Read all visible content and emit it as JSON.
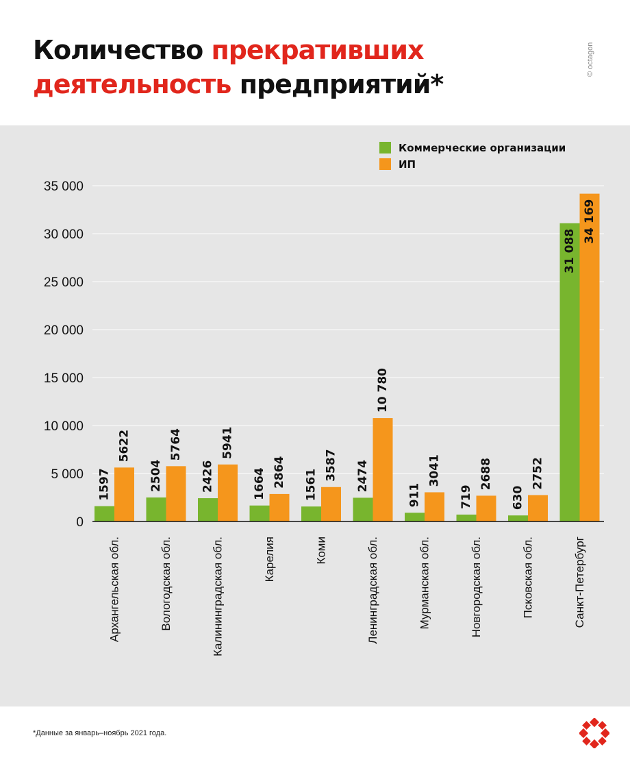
{
  "header": {
    "title_line1_black": "Количество",
    "title_line1_red": "прекративших",
    "title_line2_red": "деятельность",
    "title_line2_black": "предприятий*",
    "credit": "© octagon"
  },
  "footnote": "*Данные за январь–ноябрь 2021 года.",
  "colors": {
    "commercial": "#78b52e",
    "ip": "#f5961c",
    "accent_red": "#e1261c",
    "panel": "#e6e6e6"
  },
  "chart_data": {
    "type": "bar",
    "categories": [
      "Архангельская обл.",
      "Вологодская обл.",
      "Калининградская обл.",
      "Карелия",
      "Коми",
      "Ленинградская обл.",
      "Мурманская обл.",
      "Новгородская обл.",
      "Псковская обл.",
      "Санкт-Петербург"
    ],
    "series": [
      {
        "name": "Коммерческие организации",
        "values": [
          1597,
          2504,
          2426,
          1664,
          1561,
          2474,
          911,
          719,
          630,
          31088
        ],
        "labels": [
          "1597",
          "2504",
          "2426",
          "1664",
          "1561",
          "2474",
          "911",
          "719",
          "630",
          "31 088"
        ]
      },
      {
        "name": "ИП",
        "values": [
          5622,
          5764,
          5941,
          2864,
          3587,
          10780,
          3041,
          2688,
          2752,
          34169
        ],
        "labels": [
          "5622",
          "5764",
          "5941",
          "2864",
          "3587",
          "10 780",
          "3041",
          "2688",
          "2752",
          "34 169"
        ]
      }
    ],
    "ylim": [
      0,
      35000
    ],
    "yticks": [
      0,
      5000,
      10000,
      15000,
      20000,
      25000,
      30000,
      35000
    ],
    "ytick_labels": [
      "0",
      "5 000",
      "10 000",
      "15 000",
      "20 000",
      "25 000",
      "30 000",
      "35 000"
    ],
    "grid": true,
    "legend_position": "top-right",
    "title": "Количество прекративших деятельность предприятий*"
  }
}
